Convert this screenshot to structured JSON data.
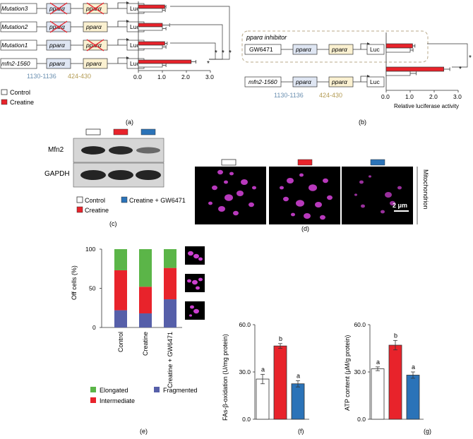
{
  "colors": {
    "control": "#ffffff",
    "creatine": "#e8232b",
    "gw6471": "#2b73b8",
    "elongated": "#5bb548",
    "intermediate": "#e8232b",
    "fragmented": "#565fa9",
    "box_pink": "#dfe6f3",
    "box_yellow": "#fbf1d1",
    "cross": "#e8232b"
  },
  "panel_a": {
    "label": "(a)",
    "rows": [
      "Mutation3",
      "Mutation2",
      "Mutation1",
      "mfn2-1560"
    ],
    "box_ppara1": "pparα",
    "box_ppara2": "pparα",
    "box_luc": "Luc",
    "site1_text": "1130-1136",
    "site2_text": "424-430",
    "legend_control": "Control",
    "legend_creatine": "Creatine",
    "sig_stars": [
      "*",
      "*",
      "*",
      "*"
    ]
  },
  "panel_b": {
    "label": "(b)",
    "inhibitor_title": "pparα inhibitor",
    "gw_box": "GW6471",
    "row2": "mfn2-1560",
    "box_ppara1": "pparα",
    "box_ppara2": "pparα",
    "box_luc": "Luc",
    "site1_text": "1130-1136",
    "site2_text": "424-430",
    "xlabel": "Relative luciferase activity",
    "sig_stars": [
      "*",
      "*"
    ]
  },
  "panel_c": {
    "label": "(c)",
    "rows": [
      "Mfn2",
      "GAPDH"
    ],
    "legend_control": "Control",
    "legend_creatine": "Creatine",
    "legend_gw": "Creatine + GW6471"
  },
  "panel_d": {
    "label": "(d)",
    "scale_bar": "2 μm",
    "side_label": "Mitochondrion"
  },
  "panel_e": {
    "label": "(e)",
    "ylabel": "Off cells (%)",
    "legend": [
      "Elongated",
      "Intermediate",
      "Fragmented"
    ]
  },
  "panel_f": {
    "label": "(f)",
    "ylabel": "FAs-β-oxidation (U/mg protein)",
    "letters": [
      "a",
      "b",
      "a"
    ]
  },
  "panel_g": {
    "label": "(g)",
    "ylabel": "ATP content (μM/g protein)",
    "letters": [
      "a",
      "b",
      "a"
    ]
  },
  "chart_data": [
    {
      "id": "a",
      "type": "bar",
      "orientation": "horizontal",
      "categories": [
        "Mutation3",
        "Mutation2",
        "Mutation1",
        "mfn2-1560"
      ],
      "xlim": [
        0,
        3.0
      ],
      "xticks": [
        0.0,
        1.0,
        2.0,
        3.0
      ],
      "series": [
        {
          "name": "Control",
          "values": [
            1.0,
            1.0,
            1.0,
            1.0
          ],
          "errors": [
            0.12,
            0.15,
            0.15,
            0.15
          ]
        },
        {
          "name": "Creatine",
          "values": [
            1.1,
            1.0,
            1.1,
            2.2
          ],
          "errors": [
            0.05,
            0.3,
            0.1,
            0.2
          ]
        }
      ]
    },
    {
      "id": "b",
      "type": "bar",
      "orientation": "horizontal",
      "categories": [
        "GW6471",
        "mfn2-1560"
      ],
      "xlim": [
        0,
        3.0
      ],
      "xticks": [
        0.0,
        1.0,
        2.0,
        3.0
      ],
      "xlabel": "Relative luciferase activity",
      "series": [
        {
          "name": "Control",
          "values": [
            1.0,
            1.0
          ],
          "errors": [
            0.12,
            0.25
          ]
        },
        {
          "name": "Creatine",
          "values": [
            1.1,
            2.4
          ],
          "errors": [
            0.1,
            0.25
          ]
        }
      ]
    },
    {
      "id": "e",
      "type": "bar",
      "stacked": true,
      "categories": [
        "Control",
        "Creatine",
        "Creatine + GW6471"
      ],
      "ylim": [
        0,
        100
      ],
      "yticks": [
        0,
        50,
        100
      ],
      "ylabel": "Off cells (%)",
      "series": [
        {
          "name": "Fragmented",
          "values": [
            22,
            18,
            36
          ]
        },
        {
          "name": "Intermediate",
          "values": [
            51,
            34,
            40
          ]
        },
        {
          "name": "Elongated",
          "values": [
            27,
            48,
            24
          ]
        }
      ]
    },
    {
      "id": "f",
      "type": "bar",
      "categories": [
        "Control",
        "Creatine",
        "Creatine + GW6471"
      ],
      "values": [
        25.5,
        46.5,
        22.5
      ],
      "errors": [
        3.0,
        1.5,
        2.0
      ],
      "ylim": [
        0,
        60
      ],
      "yticks": [
        "0.0",
        "30.0",
        "60.0"
      ],
      "ylabel": "FAs-β-oxidation (U/mg protein)"
    },
    {
      "id": "g",
      "type": "bar",
      "categories": [
        "Control",
        "Creatine",
        "Creatine + GW6471"
      ],
      "values": [
        32.0,
        47.0,
        28.0
      ],
      "errors": [
        1.2,
        3.0,
        2.0
      ],
      "ylim": [
        0,
        60
      ],
      "yticks": [
        "0.0",
        "30.0",
        "60.0"
      ],
      "ylabel": "ATP content (μM/g protein)"
    }
  ]
}
